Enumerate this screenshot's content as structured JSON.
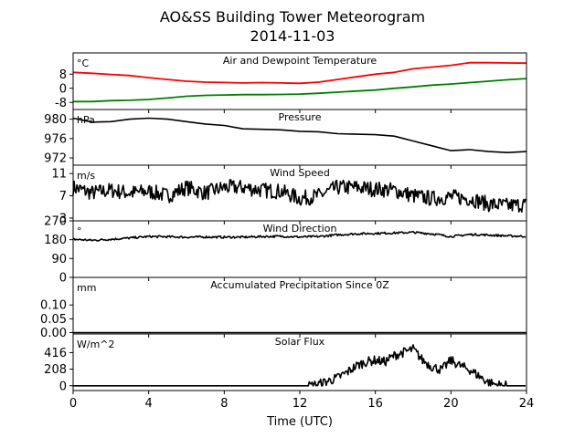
{
  "figure": {
    "title": "AO&SS Building Tower Meteorogram",
    "subtitle": "2014-11-03",
    "xlabel": "Time (UTC)"
  },
  "chart_data": {
    "type": "line",
    "x_ticks": [
      0,
      4,
      8,
      12,
      16,
      20,
      24
    ],
    "xlim": [
      0,
      24
    ],
    "panels": [
      {
        "title": "Air and Dewpoint Temperature",
        "unit": "°C",
        "ylim": [
          -12,
          20
        ],
        "y_ticks": [
          -8,
          0,
          8
        ],
        "series": [
          {
            "color": "#ff0000",
            "x": [
              0,
              1,
              2,
              3,
              4,
              5,
              6,
              7,
              8,
              9,
              10,
              11,
              12,
              13,
              14,
              15,
              16,
              17,
              18,
              19,
              20,
              21,
              22,
              23,
              24
            ],
            "values": [
              9,
              8.5,
              7.8,
              7.2,
              6,
              5,
              4,
              3.5,
              3.3,
              3,
              3.2,
              3,
              2.8,
              3.5,
              5,
              6.5,
              8,
              9,
              11,
              12,
              13,
              14.5,
              14.5,
              14.3,
              14.2
            ]
          },
          {
            "color": "#008000",
            "x": [
              0,
              1,
              2,
              3,
              4,
              5,
              6,
              7,
              8,
              9,
              10,
              11,
              12,
              13,
              14,
              15,
              16,
              17,
              18,
              19,
              20,
              21,
              22,
              23,
              24
            ],
            "values": [
              -7.5,
              -7.5,
              -7,
              -6.8,
              -6.3,
              -5.5,
              -4.5,
              -4,
              -3.8,
              -3.6,
              -3.6,
              -3.5,
              -3.3,
              -2.8,
              -2.2,
              -1.6,
              -1,
              0,
              0.8,
              1.8,
              2.4,
              3.2,
              4,
              4.8,
              5.5
            ]
          }
        ]
      },
      {
        "title": "Pressure",
        "unit": "hPa",
        "ylim": [
          970.5,
          982
        ],
        "y_ticks": [
          972,
          976,
          980
        ],
        "series": [
          {
            "color": "#000000",
            "x": [
              0,
              1,
              2,
              3,
              4,
              5,
              6,
              7,
              8,
              9,
              10,
              11,
              12,
              13,
              14,
              15,
              16,
              17,
              18,
              19,
              20,
              21,
              22,
              23,
              24
            ],
            "values": [
              980.2,
              979.4,
              979.5,
              980,
              980.2,
              980,
              979.5,
              979,
              978.7,
              978,
              977.9,
              977.8,
              977.5,
              977.4,
              977,
              976.9,
              976.8,
              976.5,
              975.5,
              974.5,
              973.5,
              973.7,
              973.3,
              973.1,
              973.3
            ]
          }
        ]
      },
      {
        "title": "Wind Speed",
        "unit": "m/s",
        "ylim": [
          2.5,
          12.5
        ],
        "y_ticks": [
          3,
          7,
          11
        ],
        "series": [
          {
            "color": "#000000",
            "x": [
              0,
              1,
              2,
              3,
              4,
              5,
              6,
              7,
              8,
              9,
              10,
              11,
              12,
              13,
              14,
              15,
              16,
              17,
              18,
              19,
              20,
              21,
              22,
              23,
              24
            ],
            "values": [
              8.5,
              7.5,
              8,
              7.5,
              7.8,
              7,
              8.5,
              7.5,
              8.5,
              8.5,
              8,
              7.8,
              6.5,
              7,
              8.5,
              8.5,
              8.2,
              8,
              7,
              6.5,
              6.8,
              6.5,
              5.5,
              5.2,
              5.5
            ]
          }
        ]
      },
      {
        "title": "Wind Direction",
        "unit": "°",
        "ylim": [
          0,
          270
        ],
        "y_ticks": [
          0,
          90,
          180,
          270
        ],
        "series": [
          {
            "color": "#000000",
            "x": [
              0,
              1,
              2,
              3,
              4,
              5,
              6,
              7,
              8,
              9,
              10,
              11,
              12,
              13,
              14,
              15,
              16,
              17,
              18,
              19,
              20,
              21,
              22,
              23,
              24
            ],
            "values": [
              182,
              177,
              182,
              188,
              195,
              194,
              192,
              193,
              192,
              192,
              195,
              196,
              193,
              195,
              203,
              208,
              210,
              212,
              215,
              208,
              195,
              205,
              202,
              198,
              196
            ]
          }
        ]
      },
      {
        "title": "Accumulated Precipitation Since 0Z",
        "unit": "mm",
        "ylim": [
          -0.005,
          0.2
        ],
        "y_ticks": [
          0.0,
          0.05,
          0.1
        ],
        "y_tick_labels": [
          "0.00",
          "0.05",
          "0.10"
        ],
        "series": [
          {
            "color": "#000000",
            "x": [
              0,
              24
            ],
            "values": [
              0,
              0
            ]
          }
        ]
      },
      {
        "title": "Solar Flux",
        "unit": "W/m^2",
        "ylim": [
          -60,
          650
        ],
        "y_ticks": [
          0,
          208,
          416
        ],
        "series": [
          {
            "color": "#000000",
            "x": [
              0,
              12.5,
              13,
              13.5,
              14,
              14.5,
              15,
              15.5,
              16,
              16.5,
              17,
              17.5,
              18,
              18.5,
              19,
              19.5,
              20,
              20.5,
              21,
              21.5,
              22,
              22.5,
              23,
              24
            ],
            "values": [
              0,
              0,
              20,
              60,
              100,
              170,
              250,
              300,
              320,
              300,
              380,
              420,
              460,
              320,
              240,
              200,
              320,
              250,
              200,
              120,
              40,
              10,
              0,
              0
            ]
          }
        ]
      }
    ]
  }
}
